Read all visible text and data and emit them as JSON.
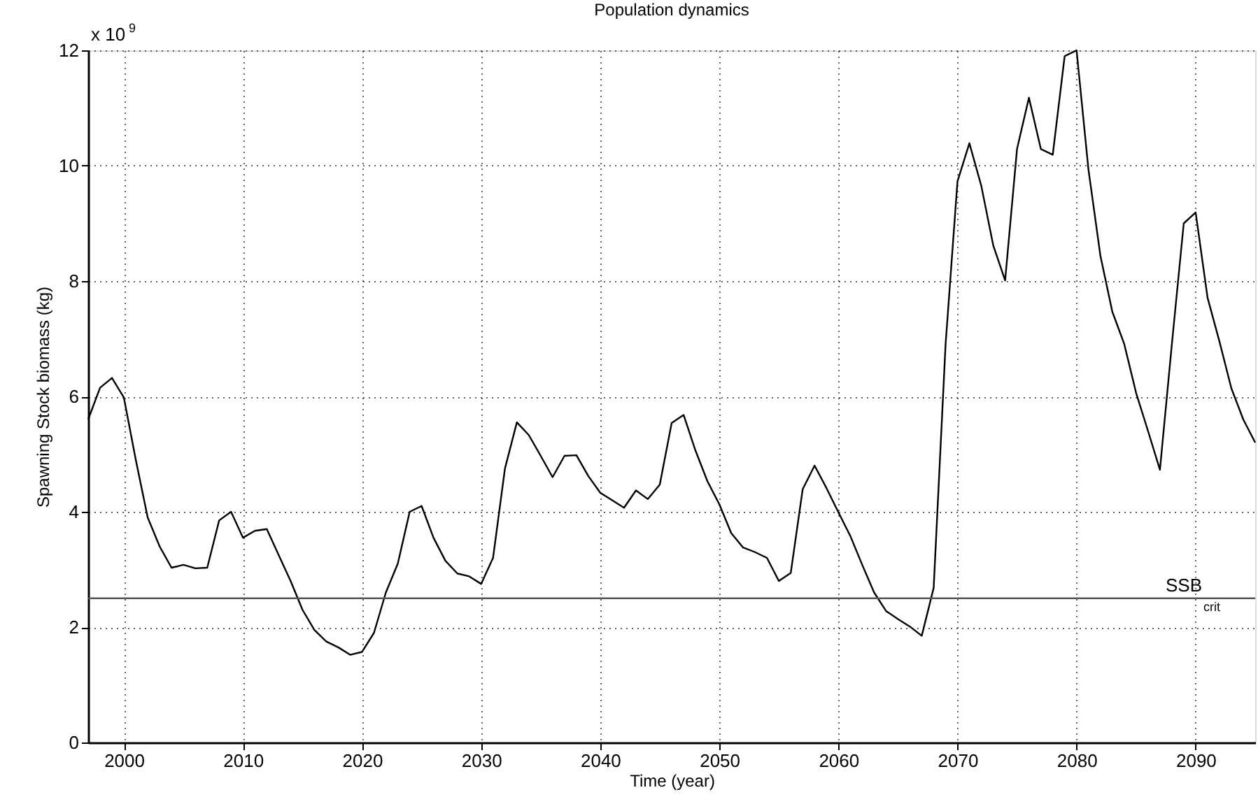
{
  "chart_data": {
    "type": "line",
    "title": "Population dynamics",
    "xlabel": "Time (year)",
    "ylabel": "Spawning Stock biomass (kg)",
    "annotations": [
      "x 10$^{9}$"
    ],
    "x": [
      1997,
      1998,
      1999,
      2000,
      2001,
      2002,
      2003,
      2004,
      2005,
      2006,
      2007,
      2008,
      2009,
      2010,
      2011,
      2012,
      2013,
      2014,
      2015,
      2016,
      2017,
      2018,
      2019,
      2020,
      2021,
      2022,
      2023,
      2024,
      2025,
      2026,
      2027,
      2028,
      2029,
      2030,
      2031,
      2032,
      2033,
      2034,
      2035,
      2036,
      2037,
      2038,
      2039,
      2040,
      2041,
      2042,
      2043,
      2044,
      2045,
      2046,
      2047,
      2048,
      2049,
      2050,
      2051,
      2052,
      2053,
      2054,
      2055,
      2056,
      2057,
      2058,
      2059,
      2060,
      2061,
      2062,
      2063,
      2064,
      2065,
      2066,
      2067,
      2068,
      2069,
      2070,
      2071,
      2072,
      2073,
      2074,
      2075,
      2076,
      2077,
      2078,
      2079,
      2080,
      2081,
      2082,
      2083,
      2084,
      2085,
      2086,
      2087,
      2088,
      2089,
      2090,
      2091,
      2092,
      2093,
      2094,
      2095
    ],
    "series": [
      {
        "color": "#000000",
        "values": [
          5.6,
          6.15,
          6.32,
          5.98,
          4.9,
          3.9,
          3.4,
          3.03,
          3.08,
          3.02,
          3.03,
          3.85,
          4.0,
          3.55,
          3.67,
          3.7,
          3.25,
          2.8,
          2.3,
          1.95,
          1.75,
          1.65,
          1.52,
          1.57,
          1.9,
          2.6,
          3.1,
          4.0,
          4.1,
          3.55,
          3.15,
          2.93,
          2.88,
          2.75,
          3.2,
          4.75,
          5.55,
          5.33,
          4.97,
          4.6,
          4.97,
          4.98,
          4.62,
          4.33,
          4.2,
          4.07,
          4.37,
          4.22,
          4.47,
          5.54,
          5.68,
          5.06,
          4.53,
          4.13,
          3.63,
          3.38,
          3.3,
          3.2,
          2.8,
          2.94,
          4.39,
          4.8,
          4.41,
          3.99,
          3.58,
          3.08,
          2.6,
          2.28,
          2.14,
          2.01,
          1.85,
          2.68,
          6.9,
          9.73,
          10.39,
          9.65,
          8.62,
          8.01,
          10.29,
          11.18,
          10.29,
          10.19,
          11.9,
          12.0,
          9.93,
          8.44,
          7.47,
          6.91,
          6.06,
          5.4,
          4.73,
          6.9,
          9.0,
          9.19,
          7.71,
          6.95,
          6.14,
          5.6,
          5.2
        ]
      }
    ],
    "xlim": [
      1997,
      2095
    ],
    "xticks": [
      2000,
      2010,
      2020,
      2030,
      2040,
      2050,
      2060,
      2070,
      2080,
      2090
    ],
    "ylim": [
      0,
      12
    ],
    "yticks": [
      0,
      2,
      4,
      6,
      8,
      10,
      12
    ],
    "ref_lines": [
      {
        "axis": "y",
        "value": 2.5,
        "label": "SSB$_{crit}$",
        "color": "#555555"
      }
    ],
    "grid": true,
    "marker": "none",
    "line_style": "solid"
  }
}
